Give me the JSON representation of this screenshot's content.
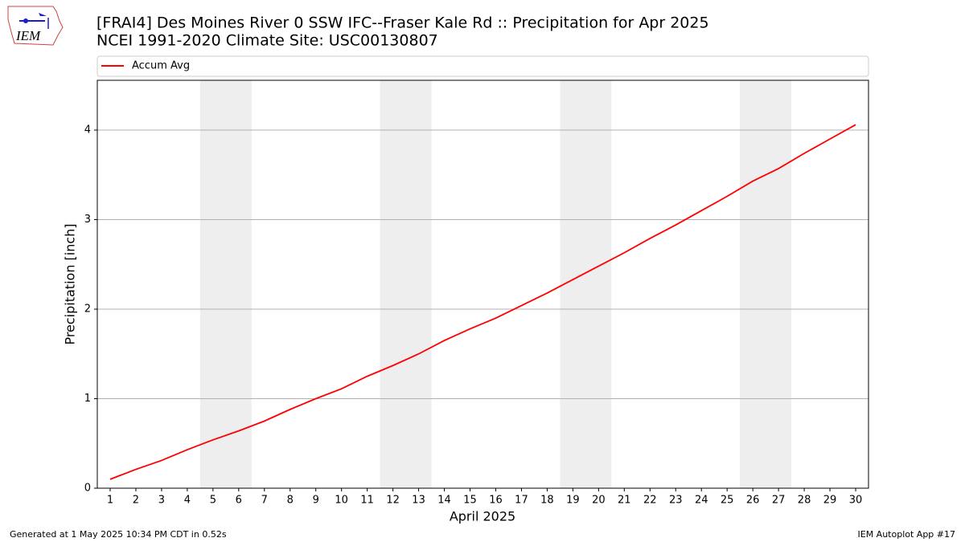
{
  "chart_data": {
    "type": "line",
    "title": "[FRAI4] Des Moines River 0 SSW IFC--Fraser Kale Rd :: Precipitation for Apr 2025",
    "subtitle": "NCEI 1991-2020 Climate Site: USC00130807",
    "logo_text": "IEM",
    "xlabel": "April 2025",
    "ylabel": "Precipitation [inch]",
    "x": [
      1,
      2,
      3,
      4,
      5,
      6,
      7,
      8,
      9,
      10,
      11,
      12,
      13,
      14,
      15,
      16,
      17,
      18,
      19,
      20,
      21,
      22,
      23,
      24,
      25,
      26,
      27,
      28,
      29,
      30
    ],
    "series": [
      {
        "name": "Accum Avg",
        "color": "#ff0000",
        "values": [
          0.1,
          0.21,
          0.31,
          0.43,
          0.54,
          0.64,
          0.75,
          0.88,
          1.0,
          1.11,
          1.25,
          1.37,
          1.5,
          1.65,
          1.78,
          1.9,
          2.04,
          2.18,
          2.33,
          2.48,
          2.63,
          2.79,
          2.94,
          3.1,
          3.26,
          3.43,
          3.57,
          3.74,
          3.9,
          4.06
        ]
      }
    ],
    "xlim": [
      0.5,
      30.5
    ],
    "ylim": [
      0,
      4.556
    ],
    "xticks": [
      1,
      2,
      3,
      4,
      5,
      6,
      7,
      8,
      9,
      10,
      11,
      12,
      13,
      14,
      15,
      16,
      17,
      18,
      19,
      20,
      21,
      22,
      23,
      24,
      25,
      26,
      27,
      28,
      29,
      30
    ],
    "yticks": [
      0,
      1,
      2,
      3,
      4
    ],
    "grid": true,
    "weekend_spans": [
      [
        4.5,
        6.5
      ],
      [
        11.5,
        13.5
      ],
      [
        18.5,
        20.5
      ],
      [
        25.5,
        27.5
      ]
    ],
    "weekend_color": "#eeeeee",
    "legend": "top",
    "footer_left": "Generated at 1 May 2025 10:34 PM CDT in 0.52s",
    "footer_right": "IEM Autoplot App #17"
  }
}
